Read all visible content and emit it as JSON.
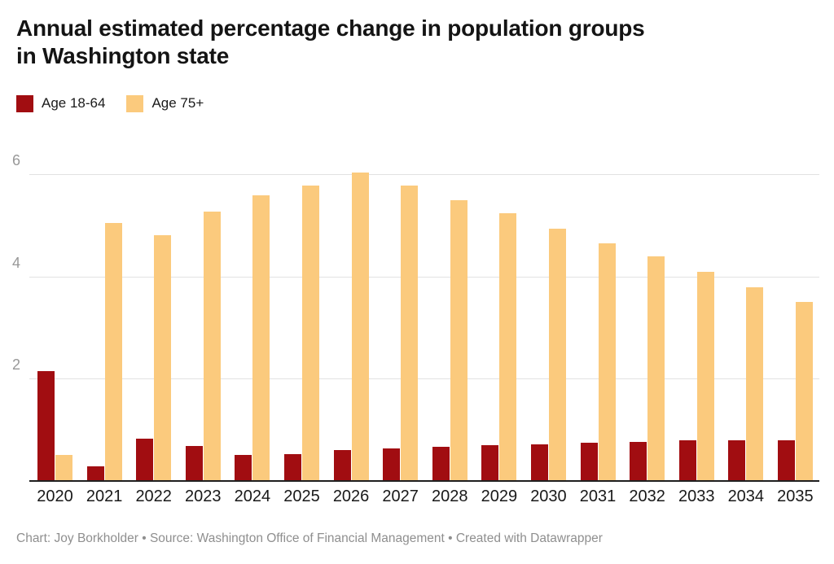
{
  "title": {
    "line1": "Annual estimated percentage change in population groups",
    "line2": "in Washington state"
  },
  "legend": {
    "items": [
      {
        "label": "Age 18-64",
        "color": "#a10d11"
      },
      {
        "label": "Age 75+",
        "color": "#fbca7d"
      }
    ]
  },
  "footer": "Chart: Joy Borkholder • Source: Washington Office of Financial Management • Created with Datawrapper",
  "chart_data": {
    "type": "bar",
    "title": "Annual estimated percentage change in population groups in Washington state",
    "xlabel": "",
    "ylabel": "",
    "categories": [
      "2020",
      "2021",
      "2022",
      "2023",
      "2024",
      "2025",
      "2026",
      "2027",
      "2028",
      "2029",
      "2030",
      "2031",
      "2032",
      "2033",
      "2034",
      "2035"
    ],
    "series": [
      {
        "name": "Age 18-64",
        "color": "#a10d11",
        "values": [
          2.15,
          0.28,
          0.82,
          0.67,
          0.49,
          0.51,
          0.6,
          0.63,
          0.66,
          0.69,
          0.71,
          0.74,
          0.76,
          0.78,
          0.79,
          0.79
        ]
      },
      {
        "name": "Age 75+",
        "color": "#fbca7d",
        "values": [
          0.5,
          5.05,
          4.82,
          5.28,
          5.6,
          5.79,
          6.05,
          5.79,
          5.5,
          5.25,
          4.95,
          4.66,
          4.4,
          4.1,
          3.8,
          3.5
        ]
      }
    ],
    "ylim": [
      0,
      6.37
    ],
    "yticks": [
      2,
      4,
      6
    ],
    "grid": "horizontal",
    "legend_position": "top-left",
    "unit": "percent"
  }
}
